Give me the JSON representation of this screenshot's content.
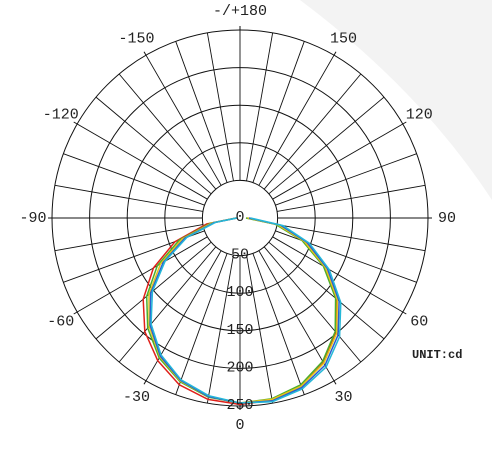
{
  "chart_data": {
    "type": "polar",
    "annotation": "UNIT:cd",
    "theta": [
      -90,
      -80,
      -70,
      -60,
      -50,
      -40,
      -30,
      -20,
      -10,
      0,
      10,
      20,
      30,
      40,
      50,
      60,
      70,
      80,
      90
    ],
    "thetaticks": [
      0,
      30,
      60,
      90,
      120,
      150,
      {
        "value": 180,
        "label": "-/+180"
      },
      -150,
      -120,
      -90,
      -60,
      -30
    ],
    "rlim": [
      0,
      250
    ],
    "rticks": [
      0,
      50,
      100,
      150,
      200,
      250
    ],
    "series": [
      {
        "color": "#e0201a",
        "values": [
          5,
          45,
          92,
          133,
          168,
          197,
          219,
          236,
          245,
          248,
          246,
          238,
          222,
          198,
          168,
          130,
          92,
          50,
          10
        ]
      },
      {
        "color": "#4caf2a",
        "values": [
          5,
          40,
          86,
          127,
          162,
          191,
          215,
          232,
          242,
          246,
          244,
          236,
          220,
          197,
          166,
          128,
          88,
          48,
          8
        ]
      },
      {
        "color": "#e8c21a",
        "values": [
          4,
          38,
          82,
          122,
          158,
          188,
          213,
          231,
          241,
          246,
          245,
          238,
          223,
          200,
          169,
          131,
          91,
          51,
          10
        ]
      },
      {
        "color": "#2a5fd0",
        "values": [
          4,
          35,
          78,
          118,
          155,
          186,
          212,
          230,
          241,
          246,
          247,
          240,
          226,
          203,
          172,
          134,
          95,
          55,
          12
        ]
      },
      {
        "color": "#25b8d8",
        "values": [
          4,
          33,
          75,
          115,
          152,
          184,
          210,
          229,
          240,
          246,
          248,
          242,
          229,
          206,
          175,
          137,
          98,
          58,
          14
        ]
      }
    ]
  }
}
